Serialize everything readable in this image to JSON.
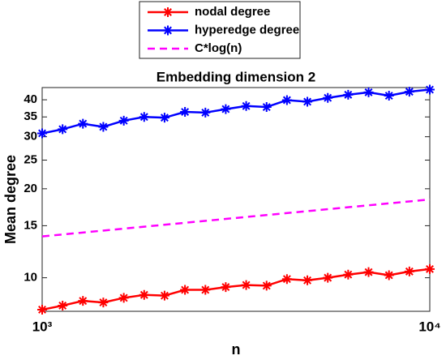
{
  "chart_data": {
    "type": "line",
    "title": "Embedding dimension 2",
    "xlabel": "n",
    "ylabel": "Mean degree",
    "xscale": "log",
    "yscale": "log",
    "x": [
      1000,
      1129,
      1274,
      1438,
      1624,
      1833,
      2069,
      2336,
      2637,
      2976,
      3360,
      3793,
      4281,
      4833,
      5456,
      6158,
      6952,
      7848,
      8859,
      10000
    ],
    "series": [
      {
        "name": "nodal degree",
        "color": "#ff0000",
        "marker": "asterisk",
        "dash": false,
        "values": [
          7.8,
          8.05,
          8.35,
          8.25,
          8.55,
          8.75,
          8.7,
          9.1,
          9.1,
          9.3,
          9.45,
          9.4,
          9.9,
          9.8,
          10,
          10.25,
          10.45,
          10.2,
          10.5,
          10.7
        ]
      },
      {
        "name": "hyperedge degree",
        "color": "#0000ff",
        "marker": "asterisk",
        "dash": false,
        "values": [
          30.8,
          31.8,
          33.2,
          32.4,
          34,
          35,
          34.8,
          36.4,
          36.2,
          37.2,
          38.1,
          37.8,
          39.9,
          39.4,
          40.6,
          41.6,
          42.4,
          41.3,
          42.6,
          43.3
        ]
      },
      {
        "name": "C*log(n)",
        "color": "#ff00ff",
        "marker": null,
        "dash": true,
        "x": [
          1000,
          10000
        ],
        "values": [
          13.8,
          18.4
        ]
      }
    ],
    "xlim": [
      1000,
      10000
    ],
    "ylim": [
      7.7,
      44
    ],
    "xticks": [
      {
        "value": 1000,
        "label": "10³"
      },
      {
        "value": 10000,
        "label": "10⁴"
      }
    ],
    "yticks": [
      10,
      15,
      20,
      25,
      30,
      35,
      40
    ],
    "legend": "top-outside"
  }
}
